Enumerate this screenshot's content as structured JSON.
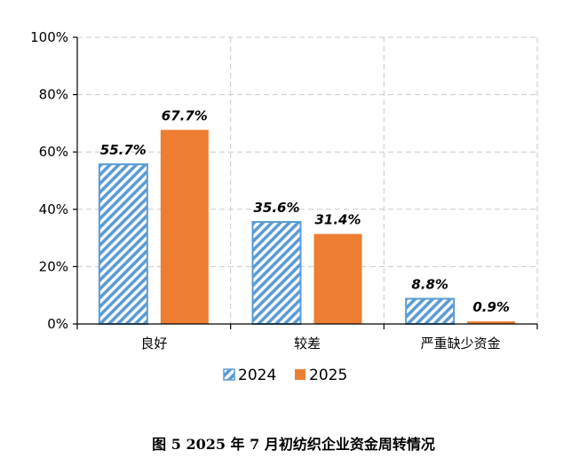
{
  "caption": "图 5   2025 年 7 月初纺织企业资金周转情况",
  "chart_data": {
    "type": "bar",
    "categories": [
      "良好",
      "较差",
      "严重缺少资金"
    ],
    "series": [
      {
        "name": "2024",
        "values": [
          55.7,
          35.6,
          8.8
        ],
        "labels": [
          "55.7%",
          "35.6%",
          "8.8%"
        ],
        "color": "#5b9bd5",
        "pattern": "diagonal-hatch"
      },
      {
        "name": "2025",
        "values": [
          67.7,
          31.4,
          0.9
        ],
        "labels": [
          "67.7%",
          "31.4%",
          "0.9%"
        ],
        "color": "#ed7d31",
        "pattern": "solid"
      }
    ],
    "ylim": [
      0,
      100
    ],
    "yticks": [
      0,
      20,
      40,
      60,
      80,
      100
    ],
    "ytick_labels": [
      "0%",
      "20%",
      "40%",
      "60%",
      "80%",
      "100%"
    ],
    "grid": true,
    "legend": "bottom"
  }
}
